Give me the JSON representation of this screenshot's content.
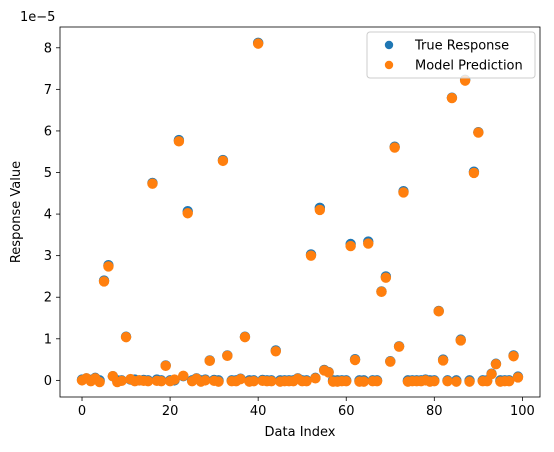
{
  "chart_data": {
    "type": "scatter",
    "title": "",
    "xlabel": "Data Index",
    "ylabel": "Response Value",
    "y_offset_label": "1e−5",
    "xlim": [
      -5,
      104
    ],
    "ylim": [
      -0.4,
      8.5
    ],
    "y_scale_factor": "1e-5",
    "x_ticks": [
      0,
      20,
      40,
      60,
      80,
      100
    ],
    "x_tick_labels": [
      "0",
      "20",
      "40",
      "60",
      "80",
      "100"
    ],
    "y_ticks": [
      0,
      1,
      2,
      3,
      4,
      5,
      6,
      7,
      8
    ],
    "y_tick_labels": [
      "0",
      "1",
      "2",
      "3",
      "4",
      "5",
      "6",
      "7",
      "8"
    ],
    "grid": false,
    "legend_position": "top-right",
    "series": [
      {
        "name": "True Response",
        "color": "#1f77b4",
        "marker": "circle",
        "x": [
          0,
          1,
          2,
          3,
          4,
          5,
          6,
          7,
          8,
          9,
          10,
          11,
          12,
          13,
          14,
          15,
          16,
          17,
          18,
          19,
          20,
          21,
          22,
          23,
          24,
          25,
          26,
          27,
          28,
          29,
          30,
          31,
          32,
          33,
          34,
          35,
          36,
          37,
          38,
          39,
          40,
          41,
          42,
          43,
          44,
          45,
          46,
          47,
          48,
          49,
          50,
          51,
          52,
          53,
          54,
          55,
          56,
          57,
          58,
          59,
          60,
          61,
          62,
          63,
          64,
          65,
          66,
          67,
          68,
          69,
          70,
          71,
          72,
          73,
          74,
          75,
          76,
          77,
          78,
          79,
          80,
          81,
          82,
          83,
          84,
          85,
          86,
          87,
          88,
          89,
          90,
          91,
          92,
          93,
          94,
          95,
          96,
          97,
          98,
          99
        ],
        "y": [
          0.02,
          0.05,
          0.01,
          0.06,
          0.0,
          2.4,
          2.77,
          0.1,
          0.0,
          0.0,
          1.05,
          0.02,
          0.02,
          0.0,
          0.01,
          0.0,
          4.75,
          0.02,
          0.0,
          0.36,
          0.0,
          0.0,
          5.78,
          0.1,
          4.07,
          0.0,
          0.05,
          0.0,
          0.02,
          0.48,
          0.01,
          0.0,
          5.3,
          0.6,
          0.0,
          0.0,
          0.04,
          1.05,
          0.0,
          0.0,
          8.12,
          0.01,
          0.0,
          0.0,
          0.72,
          0.0,
          0.0,
          0.0,
          0.0,
          0.05,
          0.0,
          0.0,
          3.03,
          0.06,
          4.15,
          0.25,
          0.2,
          0.0,
          0.0,
          0.0,
          0.0,
          3.28,
          0.51,
          0.0,
          0.0,
          3.34,
          0.0,
          0.0,
          2.14,
          2.5,
          0.46,
          5.62,
          0.82,
          4.55,
          0.0,
          0.0,
          0.0,
          0.0,
          0.02,
          0.0,
          0.0,
          1.67,
          0.5,
          0.0,
          6.8,
          0.0,
          0.98,
          7.23,
          0.0,
          5.02,
          5.97,
          0.0,
          0.0,
          0.16,
          0.4,
          0.0,
          0.0,
          0.0,
          0.6,
          0.09
        ]
      },
      {
        "name": "Model Prediction",
        "color": "#ff7f0e",
        "marker": "circle",
        "x": [
          0,
          1,
          2,
          3,
          4,
          5,
          6,
          7,
          8,
          9,
          10,
          11,
          12,
          13,
          14,
          15,
          16,
          17,
          18,
          19,
          20,
          21,
          22,
          23,
          24,
          25,
          26,
          27,
          28,
          29,
          30,
          31,
          32,
          33,
          34,
          35,
          36,
          37,
          38,
          39,
          40,
          41,
          42,
          43,
          44,
          45,
          46,
          47,
          48,
          49,
          50,
          51,
          52,
          53,
          54,
          55,
          56,
          57,
          58,
          59,
          60,
          61,
          62,
          63,
          64,
          65,
          66,
          67,
          68,
          69,
          70,
          71,
          72,
          73,
          74,
          75,
          76,
          77,
          78,
          79,
          80,
          81,
          82,
          83,
          84,
          85,
          86,
          87,
          88,
          89,
          90,
          91,
          92,
          93,
          94,
          95,
          96,
          97,
          98,
          99
        ],
        "y": [
          0.0,
          0.05,
          -0.02,
          0.05,
          -0.04,
          2.38,
          2.74,
          0.1,
          -0.04,
          -0.01,
          1.04,
          0.03,
          -0.02,
          0.0,
          -0.01,
          -0.02,
          4.73,
          -0.01,
          -0.02,
          0.35,
          -0.02,
          0.02,
          5.75,
          0.11,
          4.02,
          -0.02,
          0.04,
          -0.03,
          0.0,
          0.47,
          -0.01,
          -0.03,
          5.28,
          0.59,
          -0.02,
          -0.02,
          0.03,
          1.04,
          -0.03,
          -0.02,
          8.1,
          -0.01,
          -0.02,
          -0.02,
          0.7,
          -0.03,
          -0.02,
          -0.02,
          -0.02,
          0.04,
          -0.02,
          -0.02,
          3.0,
          0.05,
          4.1,
          0.24,
          0.19,
          -0.03,
          -0.03,
          -0.02,
          -0.02,
          3.23,
          0.49,
          -0.03,
          -0.03,
          3.29,
          -0.02,
          -0.02,
          2.13,
          2.47,
          0.45,
          5.6,
          0.81,
          4.52,
          -0.03,
          -0.02,
          -0.02,
          -0.02,
          0.0,
          -0.03,
          -0.02,
          1.66,
          0.48,
          -0.02,
          6.79,
          -0.03,
          0.96,
          7.21,
          -0.03,
          4.99,
          5.96,
          -0.02,
          -0.02,
          0.15,
          0.39,
          -0.03,
          -0.02,
          -0.02,
          0.58,
          0.07
        ]
      }
    ]
  }
}
